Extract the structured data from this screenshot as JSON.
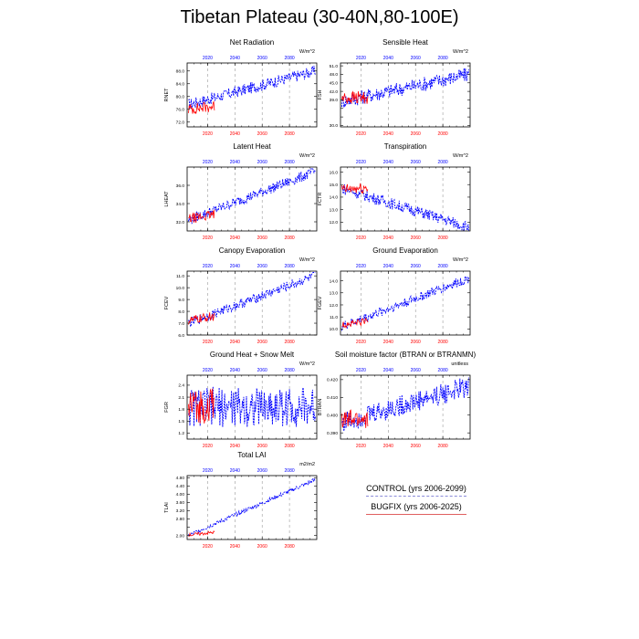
{
  "page": {
    "title": "Tibetan Plateau (30-40N,80-100E)"
  },
  "legend": {
    "control_label": "CONTROL (yrs 2006-2099)",
    "bugfix_label": "BUGFIX (yrs 2006-2025)"
  },
  "colors": {
    "control": "#0000ff",
    "bugfix": "#ff0000",
    "top_ticks": "#0000ff",
    "bottom_ticks": "#ff0000",
    "grid": "#999999"
  },
  "chart_data": [
    {
      "type": "line",
      "title": "Net Radiation",
      "unit": "W/m^2",
      "ylabel": "RNET",
      "ylim": [
        70.5,
        90.5
      ],
      "yticks": [
        72,
        76,
        80,
        84,
        88
      ],
      "ytick_labels": [
        "72.0",
        "76.0",
        "80.0",
        "84.0",
        "88.0"
      ],
      "x_top_ticks": [
        "2020",
        "2040",
        "2060",
        "2080"
      ],
      "x_bottom_ticks": [
        "2020",
        "2040",
        "2060",
        "2080"
      ],
      "x_range_control": [
        2006,
        2099
      ],
      "x_range_bugfix": [
        2006,
        2025
      ],
      "grid": "vertical dashed",
      "series": [
        {
          "name": "CONTROL",
          "start": 2006,
          "end": 2099,
          "y_start": 77.5,
          "y_end": 88.0,
          "noise": 1.8
        },
        {
          "name": "BUGFIX",
          "start": 2006,
          "end": 2025,
          "y_start": 76.0,
          "y_end": 77.0,
          "noise": 1.8
        }
      ]
    },
    {
      "type": "line",
      "title": "Sensible Heat",
      "unit": "W/m^2",
      "ylabel": "FSH",
      "ylim": [
        29.5,
        52.0
      ],
      "yticks": [
        30,
        33,
        36,
        39,
        42,
        45,
        48,
        51
      ],
      "ytick_labels": [
        "30.0",
        "",
        "",
        "39.0",
        "42.0",
        "45.0",
        "48.0",
        "51.0"
      ],
      "x_top_ticks": [
        "2020",
        "2040",
        "2060",
        "2080"
      ],
      "x_bottom_ticks": [
        "2020",
        "2040",
        "2060",
        "2080"
      ],
      "x_range_control": [
        2006,
        2099
      ],
      "x_range_bugfix": [
        2006,
        2025
      ],
      "grid": "vertical dashed",
      "series": [
        {
          "name": "CONTROL",
          "start": 2006,
          "end": 2099,
          "y_start": 38.5,
          "y_end": 48.0,
          "noise": 2.6
        },
        {
          "name": "BUGFIX",
          "start": 2006,
          "end": 2025,
          "y_start": 39.5,
          "y_end": 40.0,
          "noise": 2.4
        }
      ]
    },
    {
      "type": "line",
      "title": "Latent Heat",
      "unit": "W/m^2",
      "ylabel": "LHEAT",
      "ylim": [
        31.0,
        38.0
      ],
      "yticks": [
        32,
        34,
        36
      ],
      "ytick_labels": [
        "32.0",
        "34.0",
        "36.0"
      ],
      "x_top_ticks": [
        "2020",
        "2040",
        "2060",
        "2080"
      ],
      "x_bottom_ticks": [
        "2020",
        "2040",
        "2060",
        "2080"
      ],
      "x_range_control": [
        2006,
        2099
      ],
      "x_range_bugfix": [
        2006,
        2025
      ],
      "grid": "vertical dashed",
      "series": [
        {
          "name": "CONTROL",
          "start": 2006,
          "end": 2099,
          "y_start": 32.2,
          "y_end": 37.5,
          "noise": 0.55
        },
        {
          "name": "BUGFIX",
          "start": 2006,
          "end": 2025,
          "y_start": 32.3,
          "y_end": 32.8,
          "noise": 0.55
        }
      ]
    },
    {
      "type": "line",
      "title": "Transpiration",
      "unit": "W/m^2",
      "ylabel": "FCTR",
      "ylim": [
        11.3,
        16.4
      ],
      "yticks": [
        12,
        13,
        14,
        15,
        16
      ],
      "ytick_labels": [
        "12.0",
        "13.0",
        "14.0",
        "15.0",
        "16.0"
      ],
      "x_top_ticks": [
        "2020",
        "2040",
        "2060",
        "2080"
      ],
      "x_bottom_ticks": [
        "2020",
        "2040",
        "2060",
        "2080"
      ],
      "x_range_control": [
        2006,
        2099
      ],
      "x_range_bugfix": [
        2006,
        2025
      ],
      "grid": "vertical dashed",
      "series": [
        {
          "name": "CONTROL",
          "start": 2006,
          "end": 2099,
          "y_start": 14.7,
          "y_end": 11.6,
          "noise": 0.45
        },
        {
          "name": "BUGFIX",
          "start": 2006,
          "end": 2025,
          "y_start": 14.6,
          "y_end": 14.7,
          "noise": 0.45
        }
      ]
    },
    {
      "type": "line",
      "title": "Canopy Evaporation",
      "unit": "W/m^2",
      "ylabel": "FCEV",
      "ylim": [
        6.0,
        11.4
      ],
      "yticks": [
        6,
        7,
        8,
        9,
        10,
        11
      ],
      "ytick_labels": [
        "6.0",
        "7.0",
        "8.0",
        "9.0",
        "10.0",
        "11.0"
      ],
      "x_top_ticks": [
        "2020",
        "2040",
        "2060",
        "2080"
      ],
      "x_bottom_ticks": [
        "2020",
        "2040",
        "2060",
        "2080"
      ],
      "x_range_control": [
        2006,
        2099
      ],
      "x_range_bugfix": [
        2006,
        2025
      ],
      "grid": "vertical dashed",
      "series": [
        {
          "name": "CONTROL",
          "start": 2006,
          "end": 2099,
          "y_start": 7.0,
          "y_end": 11.0,
          "noise": 0.4
        },
        {
          "name": "BUGFIX",
          "start": 2006,
          "end": 2025,
          "y_start": 7.2,
          "y_end": 7.6,
          "noise": 0.4
        }
      ]
    },
    {
      "type": "line",
      "title": "Ground Evaporation",
      "unit": "W/m^2",
      "ylabel": "FGEV",
      "ylim": [
        9.5,
        14.8
      ],
      "yticks": [
        10,
        11,
        12,
        13,
        14
      ],
      "ytick_labels": [
        "10.0",
        "11.0",
        "12.0",
        "13.0",
        "14.0"
      ],
      "x_top_ticks": [
        "2020",
        "2040",
        "2060",
        "2080"
      ],
      "x_bottom_ticks": [
        "2020",
        "2040",
        "2060",
        "2080"
      ],
      "x_range_control": [
        2006,
        2099
      ],
      "x_range_bugfix": [
        2006,
        2025
      ],
      "grid": "vertical dashed",
      "series": [
        {
          "name": "CONTROL",
          "start": 2006,
          "end": 2099,
          "y_start": 10.2,
          "y_end": 14.2,
          "noise": 0.4
        },
        {
          "name": "BUGFIX",
          "start": 2006,
          "end": 2025,
          "y_start": 10.3,
          "y_end": 10.7,
          "noise": 0.3
        }
      ]
    },
    {
      "type": "line",
      "title": "Ground Heat + Snow Melt",
      "unit": "W/m^2",
      "ylabel": "FGR",
      "ylim": [
        1.05,
        2.65
      ],
      "yticks": [
        1.2,
        1.5,
        1.8,
        2.1,
        2.4
      ],
      "ytick_labels": [
        "1.2",
        "1.5",
        "1.8",
        "2.1",
        "2.4"
      ],
      "x_top_ticks": [
        "2020",
        "2040",
        "2060",
        "2080"
      ],
      "x_bottom_ticks": [
        "2020",
        "2040",
        "2060",
        "2080"
      ],
      "x_range_control": [
        2006,
        2099
      ],
      "x_range_bugfix": [
        2006,
        2025
      ],
      "grid": "vertical dashed",
      "series": [
        {
          "name": "CONTROL",
          "start": 2006,
          "end": 2099,
          "y_start": 1.85,
          "y_end": 1.85,
          "noise": 0.5
        },
        {
          "name": "BUGFIX",
          "start": 2006,
          "end": 2025,
          "y_start": 1.85,
          "y_end": 1.9,
          "noise": 0.45
        }
      ]
    },
    {
      "type": "line",
      "title": "Soil moisture factor (BTRAN or BTRANMN)",
      "unit": "unitless",
      "ylabel": "BTRAN",
      "ylim": [
        0.3865,
        0.4225
      ],
      "yticks": [
        0.39,
        0.4,
        0.41,
        0.42
      ],
      "ytick_labels": [
        "0.390",
        "0.400",
        "0.410",
        "0.420"
      ],
      "x_top_ticks": [
        "2020",
        "2040",
        "2060",
        "2080"
      ],
      "x_bottom_ticks": [
        "2020",
        "2040",
        "2060",
        "2080"
      ],
      "x_range_control": [
        2006,
        2099
      ],
      "x_range_bugfix": [
        2006,
        2025
      ],
      "grid": "vertical dashed",
      "series": [
        {
          "name": "CONTROL",
          "start": 2006,
          "end": 2099,
          "y_start": 0.396,
          "y_end": 0.416,
          "noise": 0.006
        },
        {
          "name": "BUGFIX",
          "start": 2006,
          "end": 2025,
          "y_start": 0.397,
          "y_end": 0.398,
          "noise": 0.006
        }
      ]
    },
    {
      "type": "line",
      "title": "Total LAI",
      "unit": "m2/m2",
      "ylabel": "TLAI",
      "ylim": [
        1.8,
        4.9
      ],
      "yticks": [
        2.0,
        2.4,
        2.8,
        3.2,
        3.6,
        4.0,
        4.4,
        4.8
      ],
      "ytick_labels": [
        "2.00",
        "",
        "2.80",
        "3.20",
        "3.60",
        "4.00",
        "4.40",
        "4.80"
      ],
      "x_top_ticks": [
        "2020",
        "2040",
        "2060",
        "2080"
      ],
      "x_bottom_ticks": [
        "2020",
        "2040",
        "2060",
        "2080"
      ],
      "x_range_control": [
        2006,
        2099
      ],
      "x_range_bugfix": [
        2006,
        2025
      ],
      "grid": "vertical dashed",
      "series": [
        {
          "name": "CONTROL",
          "start": 2006,
          "end": 2099,
          "y_start": 2.0,
          "y_end": 4.7,
          "noise": 0.1
        },
        {
          "name": "BUGFIX",
          "start": 2006,
          "end": 2025,
          "y_start": 2.02,
          "y_end": 2.15,
          "noise": 0.08
        }
      ]
    }
  ]
}
